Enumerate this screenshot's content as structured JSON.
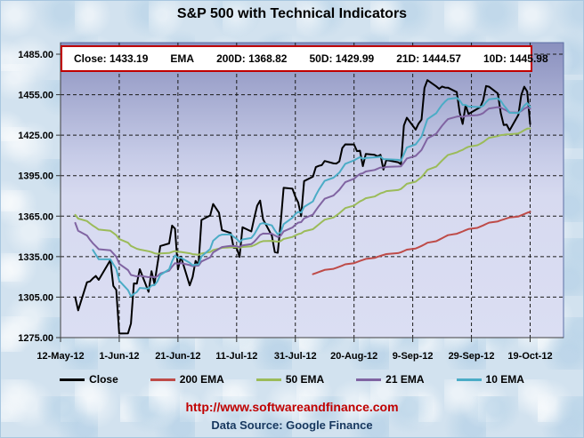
{
  "title": "S&P 500 with Technical Indicators",
  "info_box": {
    "items": [
      "Close: 1433.19",
      "EMA",
      "200D: 1368.82",
      "50D: 1429.99",
      "21D: 1444.57",
      "10D: 1445.98"
    ]
  },
  "footer": {
    "url": "http://www.softwareandfinance.com",
    "source": "Data Source: Google Finance"
  },
  "colors": {
    "close": "#000000",
    "ema200": "#BE4B48",
    "ema50": "#9BBB59",
    "ema21": "#8064A2",
    "ema10": "#4BACC6",
    "info_border": "#C00000",
    "url_text": "#C00000",
    "source_text": "#17375E",
    "plot_gradient_top": "#8A90BE",
    "plot_gradient_bottom": "#DBDEF3"
  },
  "chart_data": {
    "type": "line",
    "title": "S&P 500 with Technical Indicators",
    "legend_position": "bottom",
    "grid": true,
    "y_axis": {
      "min": 1275,
      "max": 1485,
      "tick_step": 30,
      "ticks": [
        1485,
        1455,
        1425,
        1395,
        1365,
        1335,
        1305,
        1275
      ]
    },
    "x_axis": {
      "start_date": "2012-05-12",
      "end_date": "2012-10-19",
      "tick_labels": [
        "12-May-12",
        "1-Jun-12",
        "21-Jun-12",
        "11-Jul-12",
        "31-Jul-12",
        "20-Aug-12",
        "9-Sep-12",
        "29-Sep-12",
        "19-Oct-12"
      ]
    },
    "dates": [
      "2012-05-17",
      "2012-05-18",
      "2012-05-21",
      "2012-05-22",
      "2012-05-23",
      "2012-05-24",
      "2012-05-25",
      "2012-05-29",
      "2012-05-30",
      "2012-05-31",
      "2012-06-01",
      "2012-06-04",
      "2012-06-05",
      "2012-06-06",
      "2012-06-07",
      "2012-06-08",
      "2012-06-11",
      "2012-06-12",
      "2012-06-13",
      "2012-06-14",
      "2012-06-15",
      "2012-06-18",
      "2012-06-19",
      "2012-06-20",
      "2012-06-21",
      "2012-06-22",
      "2012-06-25",
      "2012-06-26",
      "2012-06-27",
      "2012-06-28",
      "2012-06-29",
      "2012-07-02",
      "2012-07-03",
      "2012-07-05",
      "2012-07-06",
      "2012-07-09",
      "2012-07-10",
      "2012-07-11",
      "2012-07-12",
      "2012-07-13",
      "2012-07-16",
      "2012-07-17",
      "2012-07-18",
      "2012-07-19",
      "2012-07-20",
      "2012-07-23",
      "2012-07-24",
      "2012-07-25",
      "2012-07-26",
      "2012-07-27",
      "2012-07-30",
      "2012-07-31",
      "2012-08-01",
      "2012-08-02",
      "2012-08-03",
      "2012-08-06",
      "2012-08-07",
      "2012-08-08",
      "2012-08-09",
      "2012-08-10",
      "2012-08-13",
      "2012-08-14",
      "2012-08-15",
      "2012-08-16",
      "2012-08-17",
      "2012-08-20",
      "2012-08-21",
      "2012-08-22",
      "2012-08-23",
      "2012-08-24",
      "2012-08-27",
      "2012-08-28",
      "2012-08-29",
      "2012-08-30",
      "2012-08-31",
      "2012-09-04",
      "2012-09-05",
      "2012-09-06",
      "2012-09-07",
      "2012-09-10",
      "2012-09-11",
      "2012-09-12",
      "2012-09-13",
      "2012-09-14",
      "2012-09-17",
      "2012-09-18",
      "2012-09-19",
      "2012-09-20",
      "2012-09-21",
      "2012-09-24",
      "2012-09-25",
      "2012-09-26",
      "2012-09-27",
      "2012-09-28",
      "2012-10-01",
      "2012-10-02",
      "2012-10-03",
      "2012-10-04",
      "2012-10-05",
      "2012-10-08",
      "2012-10-09",
      "2012-10-10",
      "2012-10-11",
      "2012-10-12",
      "2012-10-15",
      "2012-10-16",
      "2012-10-17",
      "2012-10-18",
      "2012-10-19"
    ],
    "series": [
      {
        "name": "Close",
        "kind": "price",
        "color": "#000000",
        "final_value": 1433.19,
        "values": [
          1304.86,
          1295.22,
          1315.99,
          1316.63,
          1318.86,
          1320.68,
          1317.82,
          1332.42,
          1313.32,
          1310.33,
          1278.04,
          1278.18,
          1285.5,
          1315.13,
          1314.99,
          1325.66,
          1308.93,
          1324.18,
          1314.88,
          1329.1,
          1342.84,
          1344.78,
          1357.98,
          1355.69,
          1325.51,
          1335.02,
          1313.72,
          1319.99,
          1331.85,
          1329.04,
          1362.16,
          1365.51,
          1374.02,
          1367.58,
          1354.68,
          1352.46,
          1341.47,
          1341.45,
          1334.76,
          1356.78,
          1353.64,
          1363.67,
          1372.78,
          1376.51,
          1362.66,
          1350.52,
          1338.31,
          1337.89,
          1360.02,
          1385.97,
          1385.3,
          1379.32,
          1375.14,
          1365.0,
          1390.99,
          1394.23,
          1401.35,
          1402.22,
          1402.8,
          1405.87,
          1404.11,
          1403.93,
          1405.53,
          1415.51,
          1418.16,
          1418.13,
          1413.17,
          1413.49,
          1402.08,
          1411.13,
          1410.44,
          1409.3,
          1410.49,
          1399.48,
          1406.58,
          1404.94,
          1403.44,
          1432.12,
          1437.92,
          1429.08,
          1433.56,
          1436.56,
          1459.99,
          1465.77,
          1461.19,
          1459.32,
          1461.05,
          1460.26,
          1460.15,
          1456.89,
          1441.59,
          1433.32,
          1447.15,
          1440.67,
          1444.49,
          1445.75,
          1450.99,
          1461.4,
          1460.93,
          1455.88,
          1441.48,
          1432.56,
          1432.84,
          1428.59,
          1440.13,
          1454.92,
          1460.91,
          1457.34,
          1433.19
        ]
      },
      {
        "name": "200 EMA",
        "kind": "ema",
        "period": 200,
        "seed": 1322.0,
        "start_index": 55,
        "color": "#BE4B48",
        "final_value": 1368.82
      },
      {
        "name": "50 EMA",
        "kind": "ema",
        "period": 50,
        "seed": 1366.0,
        "start_index": 0,
        "color": "#9BBB59",
        "final_value": 1429.99
      },
      {
        "name": "21 EMA",
        "kind": "ema",
        "period": 21,
        "seed": 1360.0,
        "start_index": 0,
        "color": "#8064A2",
        "final_value": 1444.57
      },
      {
        "name": "10 EMA",
        "kind": "ema",
        "period": 10,
        "seed": 1340.0,
        "start_index": 4,
        "color": "#4BACC6",
        "final_value": 1445.98
      }
    ]
  }
}
